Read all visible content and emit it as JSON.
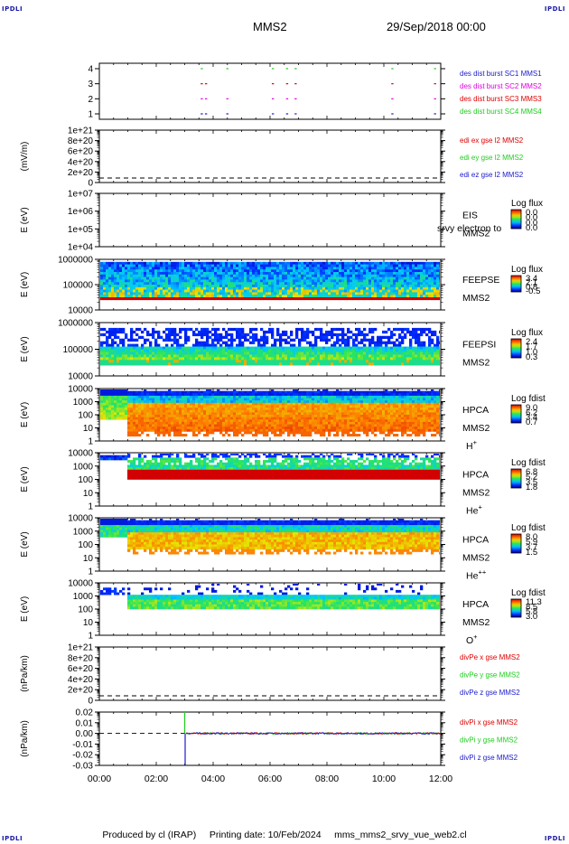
{
  "corners": {
    "tl": "IPDLI",
    "tr": "IPDLI",
    "bl": "IPDLI",
    "br": "IPDLI"
  },
  "header": {
    "spacecraft": "MMS2",
    "datetime": "29/Sep/2018 00:00"
  },
  "footer": {
    "produced_by": "Produced by cl (IRAP)",
    "printing_date": "Printing date: 10/Feb/2024",
    "filename": "mms_mms2_srvy_vue_web2.cl"
  },
  "colors": {
    "black": "#000000",
    "blue": "#1a1acc",
    "magenta": "#e000e0",
    "red": "#dd0000",
    "green": "#22cc22"
  },
  "chart_data": [
    {
      "id": "burst",
      "type": "scatter",
      "ylabel": "",
      "yticks": [
        "4",
        "3",
        "2",
        "1"
      ],
      "legend": [
        {
          "text": "des dist burst SC1 MMS1",
          "color": "#1a1acc"
        },
        {
          "text": "des dist burst SC2 MMS2",
          "color": "#e000e0"
        },
        {
          "text": "des dist burst SC3 MMS3",
          "color": "#dd0000"
        },
        {
          "text": "des dist burst SC4 MMS4",
          "color": "#22cc22"
        }
      ],
      "series": [
        {
          "y": 4,
          "color": "#22cc22",
          "x": [
            3.6,
            4.5,
            6.1,
            6.6,
            6.9,
            10.3,
            11.8
          ]
        },
        {
          "y": 3,
          "color": "#dd0000",
          "x": [
            3.6,
            3.75,
            6.1,
            6.6,
            6.9,
            10.3,
            11.8
          ]
        },
        {
          "y": 2,
          "color": "#e000e0",
          "x": [
            3.6,
            3.75,
            4.5,
            6.1,
            6.6,
            6.9,
            10.3,
            11.8
          ]
        },
        {
          "y": 1,
          "color": "#1a1acc",
          "x": [
            3.6,
            3.75,
            4.5,
            6.1,
            6.6,
            6.9,
            10.3,
            11.8
          ]
        }
      ]
    },
    {
      "id": "edi",
      "type": "line",
      "ylabel": "(mV/m)",
      "yticks": [
        "1e+21",
        "8e+20",
        "6e+20",
        "4e+20",
        "2e+20",
        "0"
      ],
      "legend": [
        {
          "text": "edi ex gse l2 MMS2",
          "color": "#dd0000"
        },
        {
          "text": "edi ey gse l2 MMS2",
          "color": "#22cc22"
        },
        {
          "text": "edi ez gse l2 MMS2",
          "color": "#1a1acc"
        }
      ],
      "zero_line": "dashed"
    },
    {
      "id": "eis",
      "type": "heatmap",
      "ylabel": "E (eV)",
      "yticks": [
        "1e+07",
        "1e+06",
        "1e+05",
        "1e+04"
      ],
      "labels": [
        "EIS",
        "MMS2"
      ],
      "overlay_label": "srvy electron to",
      "colorbar_title": "Log flux",
      "colorbar_ticks": [
        "0.0",
        "0.0",
        "0.0",
        "0.0"
      ]
    },
    {
      "id": "feepse",
      "type": "heatmap",
      "ylabel": "E (eV)",
      "yticks": [
        "1000000",
        "100000",
        "10000"
      ],
      "labels": [
        "FEEPSE",
        "MMS2"
      ],
      "colorbar_title": "Log flux",
      "colorbar_ticks": [
        "3.4",
        "2.1",
        "0.8",
        "-0.5"
      ]
    },
    {
      "id": "feepsi",
      "type": "heatmap",
      "ylabel": "E (eV)",
      "yticks": [
        "1000000",
        "100000",
        "10000"
      ],
      "labels": [
        "FEEPSI",
        "MMS2"
      ],
      "colorbar_title": "Log flux",
      "colorbar_ticks": [
        "2.4",
        "1.7",
        "1.0",
        "0.3"
      ]
    },
    {
      "id": "hpca_h",
      "type": "heatmap",
      "ylabel": "E (eV)",
      "yticks": [
        "10000",
        "1000",
        "100",
        "10",
        "1"
      ],
      "labels": [
        "HPCA",
        "MMS2"
      ],
      "species": "H",
      "charge": "+",
      "colorbar_title": "Log fdist",
      "colorbar_ticks": [
        "9.0",
        "6.2",
        "3.4",
        "0.7"
      ]
    },
    {
      "id": "hpca_he",
      "type": "heatmap",
      "ylabel": "E (eV)",
      "yticks": [
        "10000",
        "1000",
        "100",
        "10",
        "1"
      ],
      "labels": [
        "HPCA",
        "MMS2"
      ],
      "species": "He",
      "charge": "+",
      "colorbar_title": "Log fdist",
      "colorbar_ticks": [
        "6.8",
        "5.2",
        "3.5",
        "1.8"
      ]
    },
    {
      "id": "hpca_hepp",
      "type": "heatmap",
      "ylabel": "E (eV)",
      "yticks": [
        "10000",
        "1000",
        "100",
        "10",
        "1"
      ],
      "labels": [
        "HPCA",
        "MMS2"
      ],
      "species": "He",
      "charge": "++",
      "colorbar_title": "Log fdist",
      "colorbar_ticks": [
        "8.0",
        "5.9",
        "3.7",
        "1.5"
      ]
    },
    {
      "id": "hpca_o",
      "type": "heatmap",
      "ylabel": "E (eV)",
      "yticks": [
        "10000",
        "1000",
        "100",
        "10",
        "1"
      ],
      "labels": [
        "HPCA",
        "MMS2"
      ],
      "species": "O",
      "charge": "+",
      "colorbar_title": "Log fdist",
      "colorbar_ticks": [
        "11.3",
        "8.5",
        "5.8",
        "3.0"
      ]
    },
    {
      "id": "divpe",
      "type": "line",
      "ylabel": "(nPa/km)",
      "yticks": [
        "1e+21",
        "8e+20",
        "6e+20",
        "4e+20",
        "2e+20",
        "0"
      ],
      "legend": [
        {
          "text": "divPe x gse MMS2",
          "color": "#dd0000"
        },
        {
          "text": "divPe y gse MMS2",
          "color": "#22cc22"
        },
        {
          "text": "divPe z gse MMS2",
          "color": "#1a1acc"
        }
      ],
      "zero_line": "dashed"
    },
    {
      "id": "divpi",
      "type": "line",
      "ylabel": "(nPa/km)",
      "yticks": [
        "0.02",
        "0.01",
        "0.00",
        "-0.01",
        "-0.02",
        "-0.03"
      ],
      "ylim": [
        -0.03,
        0.02
      ],
      "legend": [
        {
          "text": "divPi x gse MMS2",
          "color": "#dd0000"
        },
        {
          "text": "divPi y gse MMS2",
          "color": "#22cc22"
        },
        {
          "text": "divPi z gse MMS2",
          "color": "#1a1acc"
        }
      ],
      "zero_line": "dashed",
      "spike": {
        "x": 3.0,
        "y_max": 0.02,
        "y_min": -0.03
      }
    }
  ],
  "xaxis": {
    "ticks": [
      "00:00",
      "02:00",
      "04:00",
      "06:00",
      "08:00",
      "10:00",
      "12:00"
    ],
    "range_hours": [
      0,
      12
    ]
  }
}
